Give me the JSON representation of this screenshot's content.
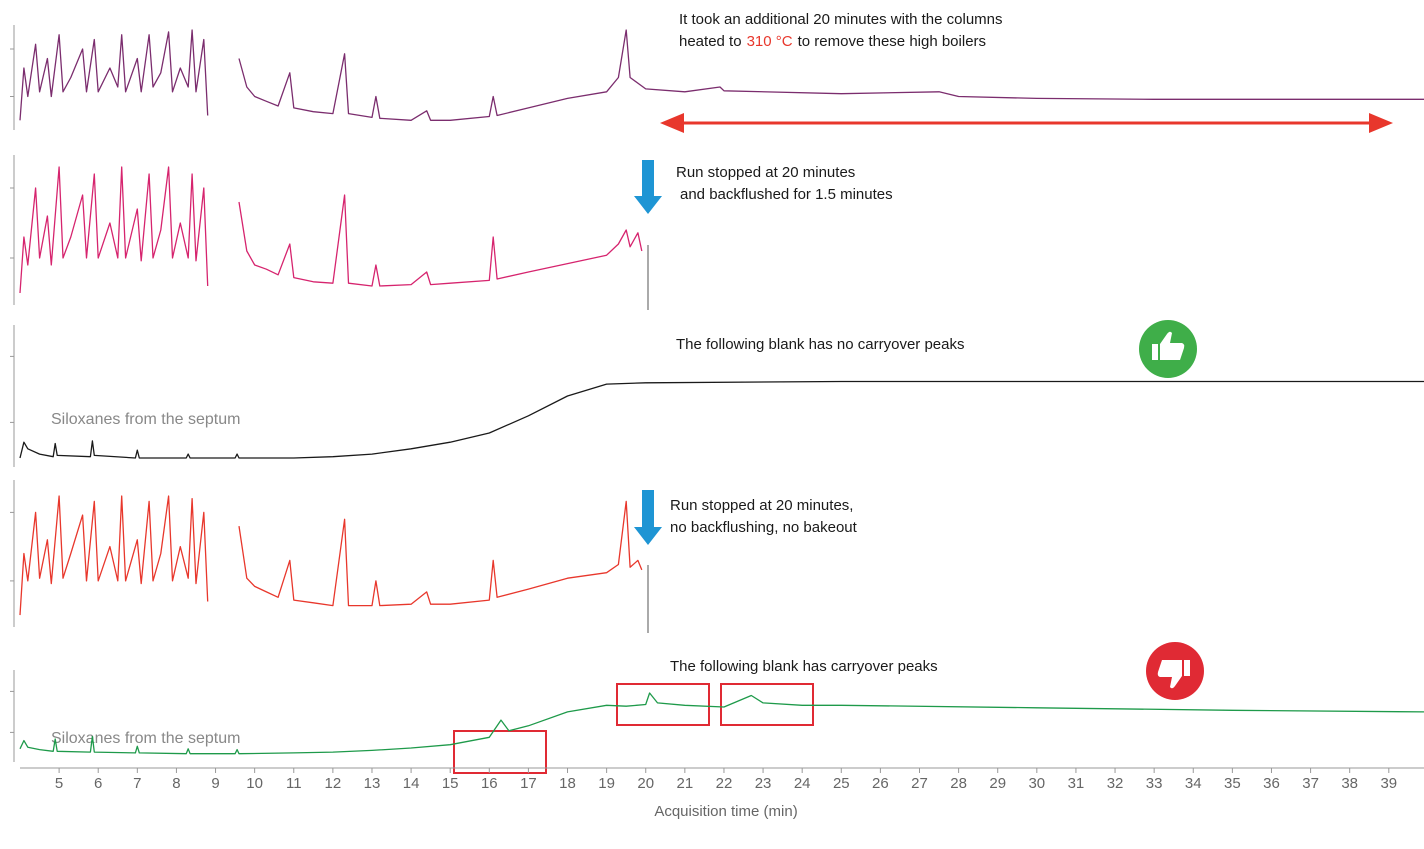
{
  "chart_data": {
    "type": "line",
    "xlabel": "Acquisition time (min)",
    "xlim": [
      4,
      39.9
    ],
    "xticks": [
      5,
      6,
      7,
      8,
      9,
      10,
      11,
      12,
      13,
      14,
      15,
      16,
      17,
      18,
      19,
      20,
      21,
      22,
      23,
      24,
      25,
      26,
      27,
      28,
      29,
      30,
      31,
      32,
      33,
      34,
      35,
      36,
      37,
      38,
      39
    ],
    "ylim": [
      0,
      100
    ],
    "yticks": [
      30,
      80
    ],
    "series": [
      {
        "color": "#7b2d6e",
        "x": [
          4.0,
          4.1,
          4.2,
          4.4,
          4.5,
          4.7,
          4.8,
          5.0,
          5.1,
          5.3,
          5.6,
          5.7,
          5.9,
          6.0,
          6.3,
          6.5,
          6.6,
          6.7,
          7.0,
          7.1,
          7.3,
          7.4,
          7.6,
          7.8,
          7.9,
          8.1,
          8.3,
          8.4,
          8.5,
          8.7,
          8.8,
          9.2,
          9.6,
          9.8,
          10.0,
          10.3,
          10.6,
          10.9,
          11.0,
          11.5,
          12.0,
          12.3,
          12.4,
          13.0,
          13.1,
          13.2,
          14.0,
          14.4,
          14.5,
          15.0,
          16.0,
          16.1,
          16.2,
          17.0,
          18.0,
          19.0,
          19.3,
          19.5,
          19.6,
          20.0,
          21.0,
          21.9,
          22.0,
          25.0,
          27.5,
          28.0,
          30.0,
          33.0,
          36.0,
          39.9
        ],
        "values": [
          5,
          60,
          30,
          85,
          35,
          70,
          30,
          95,
          35,
          50,
          80,
          35,
          90,
          35,
          60,
          40,
          95,
          35,
          70,
          35,
          95,
          40,
          55,
          98,
          35,
          60,
          40,
          100,
          35,
          90,
          10,
          null,
          70,
          40,
          30,
          25,
          20,
          55,
          18,
          14,
          12,
          75,
          12,
          8,
          30,
          7,
          5,
          15,
          5,
          5,
          9,
          30,
          10,
          18,
          28,
          35,
          50,
          100,
          50,
          38,
          35,
          40,
          36,
          33,
          35,
          30,
          28,
          27,
          27,
          27
        ]
      },
      {
        "color": "#d6246e",
        "x": [
          4.0,
          4.1,
          4.2,
          4.4,
          4.5,
          4.7,
          4.8,
          5.0,
          5.1,
          5.3,
          5.6,
          5.7,
          5.9,
          6.0,
          6.3,
          6.5,
          6.6,
          6.7,
          7.0,
          7.1,
          7.3,
          7.4,
          7.6,
          7.8,
          7.9,
          8.1,
          8.3,
          8.4,
          8.5,
          8.7,
          8.8,
          9.2,
          9.6,
          9.8,
          10.0,
          10.3,
          10.6,
          10.9,
          11.0,
          11.5,
          12.0,
          12.3,
          12.4,
          13.0,
          13.1,
          13.2,
          14.0,
          14.4,
          14.5,
          15.0,
          16.0,
          16.1,
          16.2,
          17.0,
          18.0,
          19.0,
          19.3,
          19.5,
          19.6,
          19.8,
          19.9
        ],
        "values": [
          5,
          45,
          25,
          80,
          30,
          60,
          25,
          95,
          30,
          45,
          75,
          30,
          90,
          30,
          55,
          30,
          95,
          30,
          65,
          28,
          90,
          30,
          50,
          95,
          30,
          55,
          30,
          90,
          28,
          80,
          10,
          null,
          70,
          35,
          25,
          22,
          18,
          40,
          16,
          13,
          12,
          75,
          12,
          10,
          25,
          10,
          11,
          20,
          11,
          12,
          14,
          45,
          15,
          20,
          26,
          32,
          40,
          50,
          38,
          48,
          35
        ]
      },
      {
        "color": "#1a1a1a",
        "x": [
          4.0,
          4.1,
          4.2,
          4.5,
          4.85,
          4.9,
          4.95,
          5.8,
          5.85,
          5.9,
          6.95,
          7.0,
          7.05,
          8.25,
          8.3,
          8.35,
          9.5,
          9.55,
          9.6,
          11.0,
          12.0,
          13.0,
          14.0,
          15.0,
          16.0,
          17.0,
          18.0,
          19.0,
          20.0,
          25.0,
          30.0,
          35.0,
          39.9
        ],
        "values": [
          3,
          15,
          10,
          6,
          4,
          14,
          5,
          4,
          16,
          5,
          3,
          9,
          3,
          3,
          6,
          3,
          3,
          6,
          3,
          3,
          4,
          6,
          10,
          15,
          22,
          35,
          50,
          59,
          60,
          61,
          61,
          61,
          61
        ]
      },
      {
        "color": "#e8372c",
        "x": [
          4.0,
          4.1,
          4.2,
          4.4,
          4.5,
          4.7,
          4.8,
          5.0,
          5.1,
          5.3,
          5.6,
          5.7,
          5.9,
          6.0,
          6.3,
          6.5,
          6.6,
          6.7,
          7.0,
          7.1,
          7.3,
          7.4,
          7.6,
          7.8,
          7.9,
          8.1,
          8.3,
          8.4,
          8.5,
          8.7,
          8.8,
          9.2,
          9.6,
          9.8,
          10.0,
          10.3,
          10.6,
          10.9,
          11.0,
          11.5,
          12.0,
          12.3,
          12.4,
          13.0,
          13.1,
          13.2,
          14.0,
          14.4,
          14.5,
          15.0,
          16.0,
          16.1,
          16.2,
          17.0,
          18.0,
          19.0,
          19.3,
          19.5,
          19.6,
          19.8,
          19.9
        ],
        "values": [
          5,
          50,
          30,
          80,
          32,
          60,
          28,
          92,
          32,
          50,
          78,
          30,
          88,
          30,
          55,
          30,
          92,
          30,
          60,
          28,
          88,
          30,
          50,
          92,
          30,
          55,
          32,
          90,
          28,
          80,
          15,
          null,
          70,
          32,
          26,
          22,
          18,
          45,
          16,
          14,
          12,
          75,
          12,
          12,
          30,
          12,
          13,
          22,
          13,
          13,
          16,
          45,
          18,
          24,
          32,
          36,
          42,
          88,
          40,
          45,
          38
        ]
      },
      {
        "color": "#1e9a4a",
        "x": [
          4.0,
          4.1,
          4.2,
          4.5,
          4.85,
          4.9,
          4.95,
          5.8,
          5.85,
          5.9,
          6.95,
          7.0,
          7.05,
          8.25,
          8.3,
          8.35,
          9.5,
          9.55,
          9.6,
          11.0,
          12.0,
          13.0,
          14.0,
          15.0,
          16.0,
          16.3,
          16.5,
          17.0,
          18.0,
          19.0,
          19.5,
          20.0,
          20.1,
          20.3,
          21.0,
          22.0,
          22.7,
          23.0,
          24.0,
          25.0,
          30.0,
          35.0,
          39.9
        ],
        "values": [
          10,
          20,
          12,
          9,
          7,
          22,
          7,
          6,
          25,
          6,
          5,
          13,
          5,
          4,
          10,
          4,
          4,
          9,
          4,
          5,
          6,
          8,
          11,
          15,
          24,
          45,
          32,
          38,
          55,
          63,
          62,
          64,
          78,
          66,
          63,
          61,
          75,
          66,
          63,
          63,
          60,
          57,
          55
        ]
      }
    ],
    "annotations": [
      "It took an additional 20 minutes with the columns",
      "heated to",
      "310 °C",
      "to remove these high boilers",
      "Run stopped at 20 minutes",
      "and backflushed for 1.5 minutes",
      "The following blank has no carryover peaks",
      "Siloxanes from the septum",
      "Run stopped at 20 minutes,",
      "no backflushing, no bakeout",
      "The following blank has carryover peaks",
      "Siloxanes from the septum"
    ]
  }
}
